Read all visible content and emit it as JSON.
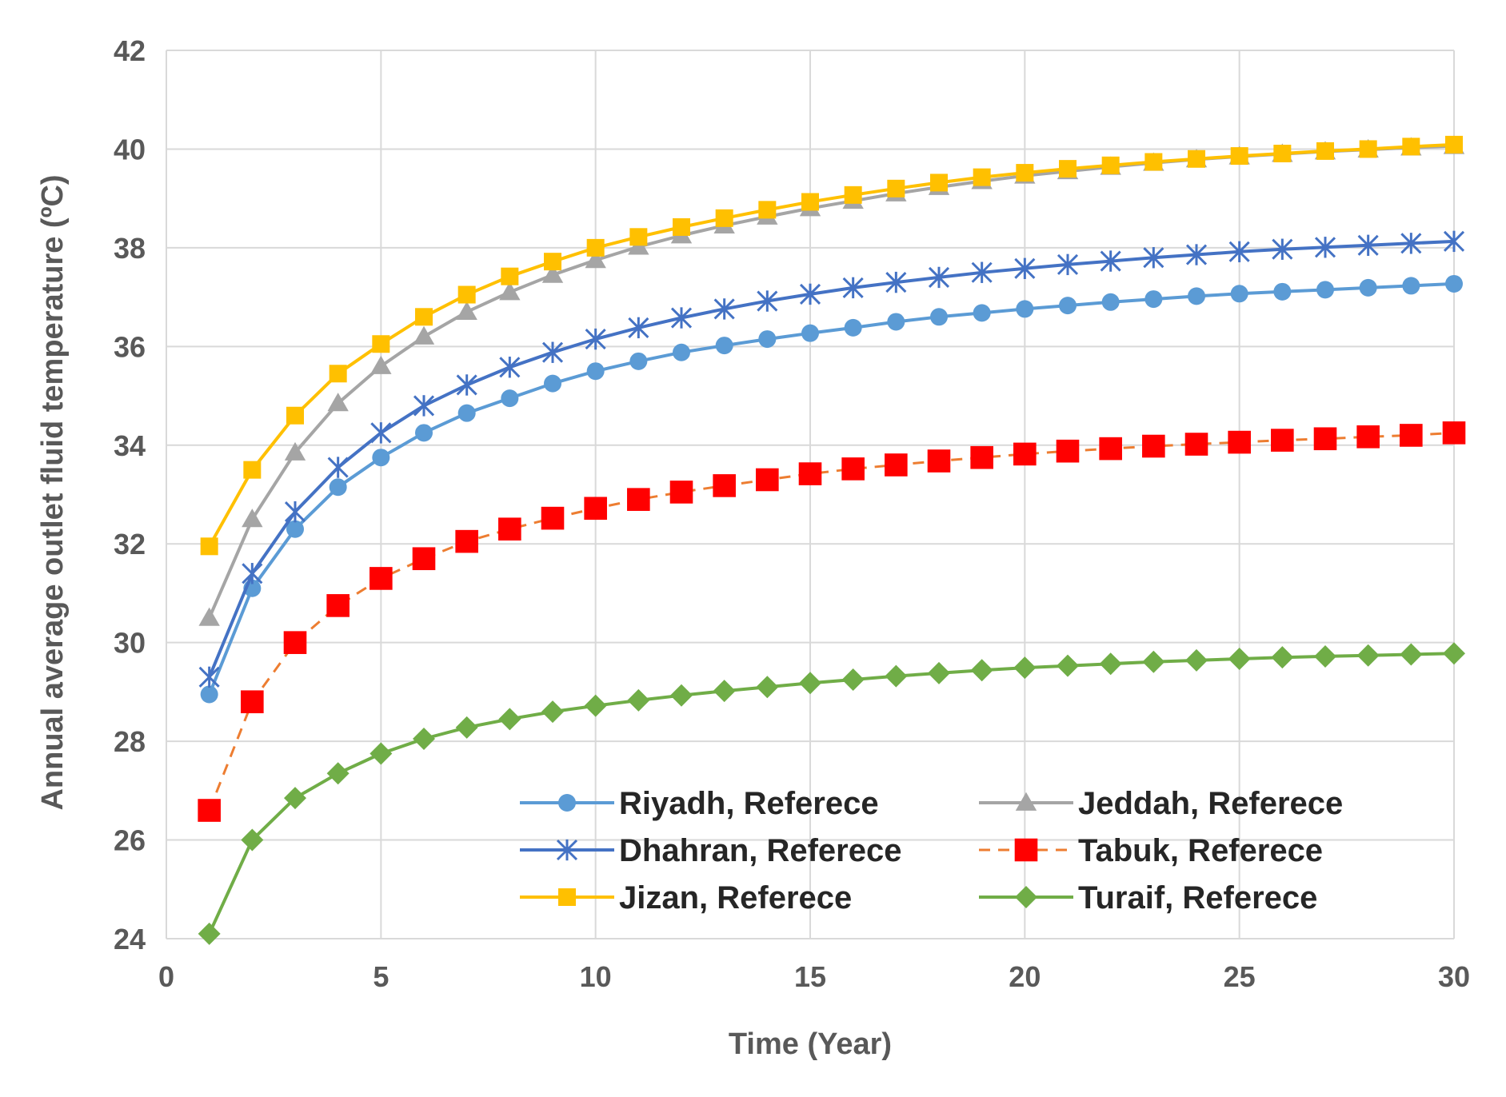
{
  "chart_data": {
    "type": "line",
    "title": "",
    "xlabel": "Time (Year)",
    "ylabel": "Annual average outlet fluid temperature (ºC)",
    "xlim": [
      0,
      30
    ],
    "ylim": [
      24,
      42
    ],
    "xticks": [
      0,
      5,
      10,
      15,
      20,
      25,
      30
    ],
    "yticks": [
      24,
      26,
      28,
      30,
      32,
      34,
      36,
      38,
      40,
      42
    ],
    "grid": true,
    "legend_position": "bottom-right inside",
    "x": [
      1,
      2,
      3,
      4,
      5,
      6,
      7,
      8,
      9,
      10,
      11,
      12,
      13,
      14,
      15,
      16,
      17,
      18,
      19,
      20,
      21,
      22,
      23,
      24,
      25,
      26,
      27,
      28,
      29,
      30
    ],
    "series": [
      {
        "name": "Riyadh, Referece",
        "color": "#5B9BD5",
        "marker": "circle",
        "dash": "solid",
        "values": [
          28.95,
          31.1,
          32.3,
          33.15,
          33.75,
          34.25,
          34.65,
          34.95,
          35.25,
          35.5,
          35.7,
          35.88,
          36.02,
          36.15,
          36.27,
          36.38,
          36.5,
          36.6,
          36.68,
          36.76,
          36.83,
          36.9,
          36.96,
          37.02,
          37.07,
          37.11,
          37.15,
          37.19,
          37.23,
          37.27
        ]
      },
      {
        "name": "Jeddah, Referece",
        "color": "#A5A5A5",
        "marker": "triangle",
        "dash": "solid",
        "values": [
          30.5,
          32.5,
          33.85,
          34.85,
          35.6,
          36.2,
          36.7,
          37.1,
          37.45,
          37.75,
          38.02,
          38.25,
          38.45,
          38.63,
          38.8,
          38.95,
          39.1,
          39.23,
          39.35,
          39.46,
          39.55,
          39.64,
          39.72,
          39.79,
          39.85,
          39.9,
          39.95,
          39.99,
          40.03,
          40.06
        ]
      },
      {
        "name": "Dhahran, Referece",
        "color": "#4472C4",
        "marker": "asterisk",
        "dash": "solid",
        "values": [
          29.3,
          31.4,
          32.65,
          33.55,
          34.25,
          34.8,
          35.22,
          35.58,
          35.88,
          36.15,
          36.38,
          36.58,
          36.76,
          36.92,
          37.06,
          37.19,
          37.3,
          37.4,
          37.5,
          37.58,
          37.66,
          37.73,
          37.8,
          37.86,
          37.92,
          37.97,
          38.01,
          38.05,
          38.09,
          38.13
        ]
      },
      {
        "name": "Tabuk, Referece",
        "color": "#ED7D31",
        "marker": "square",
        "marker_color": "#FF0000",
        "dash": "dashed",
        "values": [
          26.6,
          28.8,
          30.0,
          30.75,
          31.3,
          31.7,
          32.05,
          32.3,
          32.52,
          32.72,
          32.9,
          33.05,
          33.18,
          33.3,
          33.42,
          33.52,
          33.6,
          33.68,
          33.75,
          33.82,
          33.88,
          33.93,
          33.98,
          34.02,
          34.06,
          34.1,
          34.13,
          34.17,
          34.2,
          34.25
        ]
      },
      {
        "name": "Jizan, Referece",
        "color": "#FFC000",
        "marker": "square",
        "dash": "solid",
        "values": [
          31.95,
          33.5,
          34.6,
          35.45,
          36.05,
          36.6,
          37.05,
          37.42,
          37.72,
          38.0,
          38.22,
          38.42,
          38.6,
          38.77,
          38.93,
          39.07,
          39.2,
          39.32,
          39.43,
          39.52,
          39.6,
          39.67,
          39.74,
          39.8,
          39.86,
          39.91,
          39.96,
          40.0,
          40.05,
          40.09
        ]
      },
      {
        "name": "Turaif, Referece",
        "color": "#70AD47",
        "marker": "diamond",
        "dash": "solid",
        "values": [
          24.1,
          26.0,
          26.85,
          27.35,
          27.75,
          28.05,
          28.28,
          28.45,
          28.6,
          28.72,
          28.83,
          28.93,
          29.02,
          29.1,
          29.18,
          29.25,
          29.32,
          29.38,
          29.44,
          29.49,
          29.53,
          29.57,
          29.61,
          29.64,
          29.67,
          29.7,
          29.72,
          29.74,
          29.76,
          29.78
        ]
      }
    ]
  }
}
